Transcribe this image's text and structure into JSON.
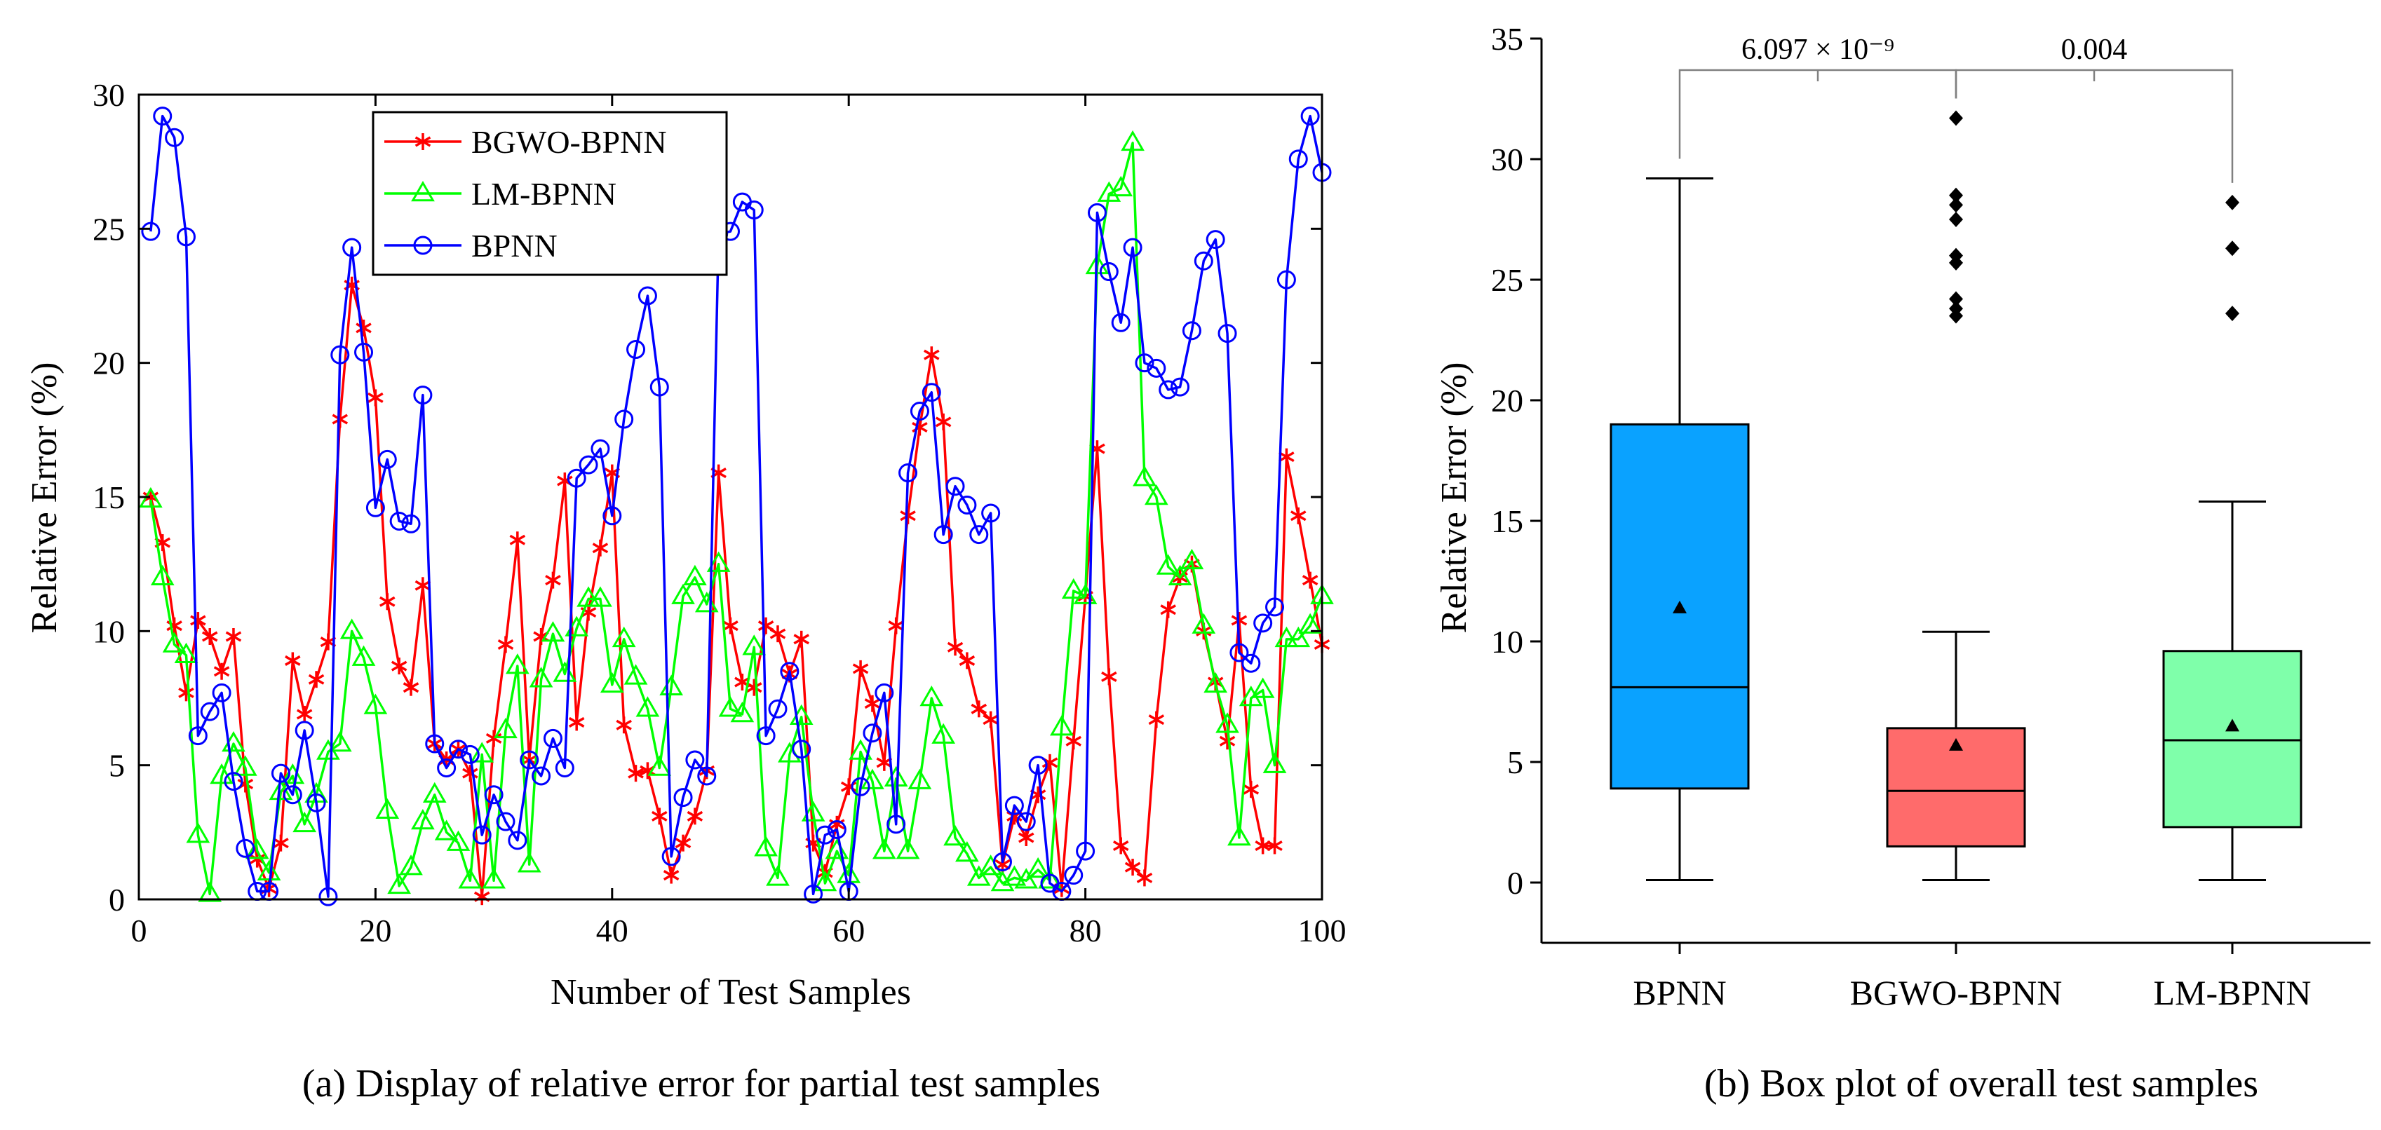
{
  "chart_data": [
    {
      "type": "line",
      "caption": "(a) Display of relative error for partial test samples",
      "xlabel": "Number of Test Samples",
      "ylabel": "Relative Error (%)",
      "xlim": [
        0,
        100
      ],
      "ylim": [
        0,
        30
      ],
      "xticks": [
        0,
        20,
        40,
        60,
        80,
        100
      ],
      "yticks": [
        0,
        5,
        10,
        15,
        20,
        25,
        30
      ],
      "grid": false,
      "legend_position": "top-center",
      "series": [
        {
          "name": "BGWO-BPNN",
          "color": "#ff0000",
          "marker": "asterisk",
          "values": [
            15.0,
            13.3,
            10.2,
            7.7,
            10.4,
            9.8,
            8.5,
            9.8,
            4.3,
            1.5,
            0.4,
            2.1,
            8.9,
            6.9,
            8.2,
            9.6,
            17.9,
            22.9,
            21.3,
            18.7,
            11.1,
            8.7,
            7.9,
            11.7,
            5.8,
            5.2,
            5.6,
            4.7,
            0.1,
            6.0,
            9.5,
            13.4,
            5.2,
            9.8,
            11.9,
            15.6,
            6.6,
            10.7,
            13.1,
            15.9,
            6.5,
            4.7,
            4.8,
            3.1,
            0.9,
            2.1,
            3.1,
            4.8,
            15.9,
            10.2,
            8.1,
            7.9,
            10.2,
            9.9,
            8.4,
            9.7,
            2.1,
            1.0,
            2.8,
            4.2,
            8.6,
            7.3,
            5.1,
            10.2,
            14.3,
            17.6,
            20.3,
            17.8,
            9.4,
            8.9,
            7.1,
            6.7,
            1.3,
            3.1,
            2.3,
            3.9,
            5.1,
            0.4,
            5.9,
            11.3,
            16.8,
            8.3,
            2.0,
            1.2,
            0.8,
            6.7,
            10.8,
            12.0,
            12.5,
            10.0,
            8.1,
            5.9,
            10.4,
            4.1,
            2.0,
            2.0,
            16.5,
            14.3,
            11.9,
            9.5
          ]
        },
        {
          "name": "LM-BPNN",
          "color": "#00ff00",
          "marker": "triangle",
          "values": [
            14.9,
            12.0,
            9.5,
            9.1,
            2.4,
            0.2,
            4.6,
            5.8,
            4.9,
            1.8,
            1.0,
            4.0,
            4.6,
            2.8,
            3.9,
            5.5,
            5.8,
            10.0,
            9.0,
            7.2,
            3.3,
            0.5,
            1.2,
            2.9,
            3.9,
            2.5,
            2.1,
            0.7,
            5.4,
            0.7,
            6.3,
            8.7,
            1.3,
            8.2,
            9.9,
            8.4,
            10.1,
            11.2,
            11.2,
            8.0,
            9.7,
            8.3,
            7.1,
            4.9,
            7.9,
            11.3,
            12.0,
            11.0,
            12.5,
            7.1,
            6.9,
            9.4,
            1.9,
            0.8,
            5.4,
            6.8,
            3.2,
            0.6,
            1.8,
            0.9,
            5.5,
            4.4,
            1.8,
            4.5,
            1.8,
            4.4,
            7.5,
            6.1,
            2.3,
            1.7,
            0.8,
            1.2,
            0.6,
            0.8,
            0.7,
            1.1,
            0.7,
            6.4,
            11.5,
            11.3,
            23.6,
            26.3,
            26.5,
            28.2,
            15.7,
            15.0,
            12.4,
            12.0,
            12.6,
            10.2,
            8.0,
            6.5,
            2.3,
            7.5,
            7.8,
            5.0,
            9.7,
            9.7,
            10.2,
            11.3
          ]
        },
        {
          "name": "BPNN",
          "color": "#0000ff",
          "marker": "circle",
          "values": [
            24.9,
            29.2,
            28.4,
            24.7,
            6.1,
            7.0,
            7.7,
            4.4,
            1.9,
            0.3,
            0.3,
            4.7,
            3.9,
            6.3,
            3.6,
            0.1,
            20.3,
            24.3,
            20.4,
            14.6,
            16.4,
            14.1,
            14.0,
            18.8,
            5.8,
            4.9,
            5.6,
            5.4,
            2.4,
            3.9,
            2.9,
            2.2,
            5.2,
            4.6,
            6.0,
            4.9,
            15.7,
            16.2,
            16.8,
            14.3,
            17.9,
            20.5,
            22.5,
            19.1,
            1.6,
            3.8,
            5.2,
            4.6,
            24.8,
            24.9,
            26.0,
            25.7,
            6.1,
            7.1,
            8.5,
            5.6,
            0.2,
            2.4,
            2.6,
            0.3,
            4.2,
            6.2,
            7.7,
            2.8,
            15.9,
            18.2,
            18.9,
            13.6,
            15.4,
            14.7,
            13.6,
            14.4,
            1.4,
            3.5,
            2.9,
            5.0,
            0.6,
            0.3,
            0.9,
            1.8,
            25.6,
            23.4,
            21.5,
            24.3,
            20.0,
            19.8,
            19.0,
            19.1,
            21.2,
            23.8,
            24.6,
            21.1,
            9.2,
            8.8,
            10.3,
            10.9,
            23.1,
            27.6,
            29.2,
            27.1
          ]
        }
      ]
    },
    {
      "type": "box",
      "caption": "(b) Box plot of overall test samples",
      "xlabel": "",
      "ylabel": "Relative Error (%)",
      "ylim": [
        -2.5,
        35
      ],
      "yticks": [
        0,
        5,
        10,
        15,
        20,
        25,
        30,
        35
      ],
      "grid": false,
      "categories": [
        "BPNN",
        "BGWO-BPNN",
        "LM-BPNN"
      ],
      "boxes": [
        {
          "name": "BPNN",
          "color": "#0aa2ff",
          "whisker_low": 0.1,
          "q1": 3.9,
          "median": 8.1,
          "q3": 19.0,
          "whisker_high": 29.2,
          "mean": 11.4,
          "outliers": []
        },
        {
          "name": "BGWO-BPNN",
          "color": "#ff6b6b",
          "whisker_low": 0.1,
          "q1": 1.5,
          "median": 3.8,
          "q3": 6.4,
          "whisker_high": 10.4,
          "mean": 5.7,
          "outliers": [
            31.7,
            28.5,
            28.1,
            27.5,
            26.0,
            25.7,
            24.2,
            23.8,
            23.5
          ]
        },
        {
          "name": "LM-BPNN",
          "color": "#7fffaa",
          "whisker_low": 0.1,
          "q1": 2.3,
          "median": 5.9,
          "q3": 9.6,
          "whisker_high": 15.8,
          "mean": 6.5,
          "outliers": [
            28.2,
            26.3,
            23.6
          ]
        }
      ],
      "annotations": [
        {
          "between": [
            "BPNN",
            "BGWO-BPNN"
          ],
          "label": "6.097 × 10⁻⁹"
        },
        {
          "between": [
            "BGWO-BPNN",
            "LM-BPNN"
          ],
          "label": "0.004"
        }
      ]
    }
  ]
}
